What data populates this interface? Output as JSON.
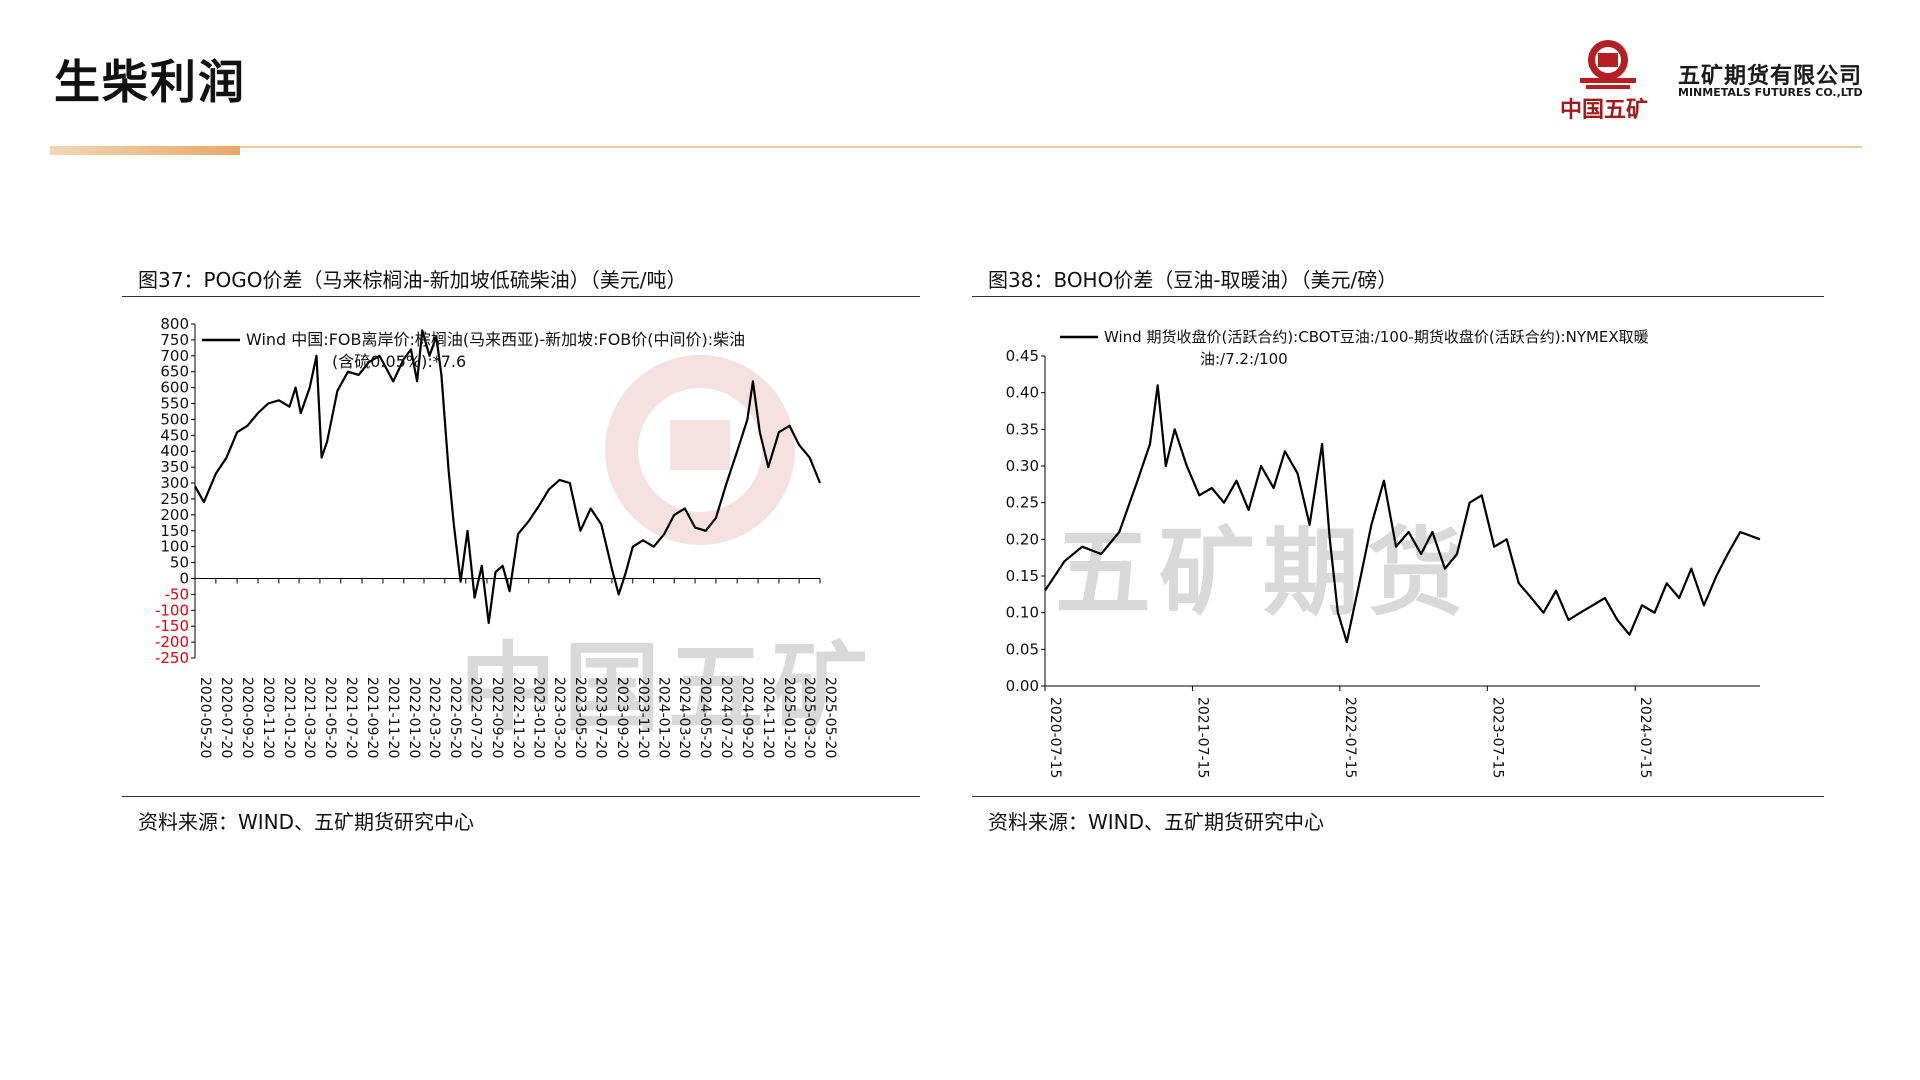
{
  "slide": {
    "title": "生柴利润"
  },
  "logo": {
    "seal_text": "MINMETALS",
    "cn_short": "中国五矿",
    "company_cn": "五矿期货有限公司",
    "company_en": "MINMETALS FUTURES CO.,LTD"
  },
  "watermark": {
    "text_left": "中国五矿",
    "text_right": "五矿期货"
  },
  "charts": [
    {
      "figure_title": "图37：POGO价差（马来棕榈油-新加坡低硫柴油）（美元/吨）",
      "source": "资料来源：WIND、五矿期货研究中心",
      "colors": {
        "line": "#000000",
        "negative_tick": "#e8000b",
        "axis": "#000000"
      },
      "chart_data": {
        "type": "line",
        "legend": [
          "Wind 中国:FOB离岸价:棕榈油(马来西亚)-新加坡:FOB价(中间价):柴油",
          "(含硫0.05%):*7.6"
        ],
        "series": [
          {
            "name": "Wind 中国:FOB离岸价:棕榈油(马来西亚)-新加坡:FOB价(中间价):柴油(含硫0.05%):*7.6"
          }
        ],
        "xlim": [
          "2020-05-20",
          "2025-05-20"
        ],
        "x_ticks": [
          "2020-05-20",
          "2020-07-20",
          "2020-09-20",
          "2020-11-20",
          "2021-01-20",
          "2021-03-20",
          "2021-05-20",
          "2021-07-20",
          "2021-09-20",
          "2021-11-20",
          "2022-01-20",
          "2022-03-20",
          "2022-05-20",
          "2022-07-20",
          "2022-09-20",
          "2022-11-20",
          "2023-01-20",
          "2023-03-20",
          "2023-05-20",
          "2023-07-20",
          "2023-09-20",
          "2023-11-20",
          "2024-01-20",
          "2024-03-20",
          "2024-05-20",
          "2024-07-20",
          "2024-09-20",
          "2024-11-20",
          "2025-01-20",
          "2025-03-20",
          "2025-05-20"
        ],
        "ylim": [
          -250,
          800
        ],
        "y_ticks": [
          "800",
          "750",
          "700",
          "650",
          "600",
          "550",
          "500",
          "450",
          "400",
          "350",
          "300",
          "250",
          "200",
          "150",
          "100",
          "50",
          "0",
          "-50",
          "-100",
          "-150",
          "-200",
          "-250"
        ],
        "x": [
          "2020-05-20",
          "2020-06-15",
          "2020-07-20",
          "2020-08-20",
          "2020-09-20",
          "2020-10-20",
          "2020-11-20",
          "2020-12-20",
          "2021-01-20",
          "2021-02-20",
          "2021-03-10",
          "2021-03-25",
          "2021-04-20",
          "2021-05-10",
          "2021-05-25",
          "2021-06-10",
          "2021-07-10",
          "2021-08-10",
          "2021-09-10",
          "2021-10-10",
          "2021-11-10",
          "2021-12-20",
          "2022-01-20",
          "2022-02-10",
          "2022-02-28",
          "2022-03-15",
          "2022-04-05",
          "2022-04-25",
          "2022-05-10",
          "2022-05-31",
          "2022-06-15",
          "2022-07-05",
          "2022-07-25",
          "2022-08-15",
          "2022-09-05",
          "2022-09-25",
          "2022-10-15",
          "2022-11-05",
          "2022-11-25",
          "2022-12-20",
          "2023-01-20",
          "2023-02-20",
          "2023-03-20",
          "2023-04-20",
          "2023-05-20",
          "2023-06-20",
          "2023-07-20",
          "2023-08-20",
          "2023-09-20",
          "2023-10-10",
          "2023-10-31",
          "2023-11-20",
          "2023-12-20",
          "2024-01-20",
          "2024-02-20",
          "2024-03-20",
          "2024-04-20",
          "2024-05-20",
          "2024-06-20",
          "2024-07-20",
          "2024-08-20",
          "2024-09-20",
          "2024-10-20",
          "2024-11-05",
          "2024-11-25",
          "2024-12-20",
          "2025-01-20",
          "2025-02-20",
          "2025-03-20",
          "2025-04-20",
          "2025-05-20"
        ],
        "values": [
          290,
          240,
          330,
          380,
          460,
          480,
          520,
          550,
          560,
          540,
          600,
          520,
          600,
          700,
          380,
          430,
          590,
          650,
          640,
          680,
          700,
          620,
          690,
          720,
          620,
          780,
          700,
          760,
          640,
          340,
          170,
          -10,
          150,
          -60,
          40,
          -140,
          20,
          40,
          -40,
          140,
          180,
          230,
          280,
          310,
          300,
          150,
          220,
          170,
          30,
          -50,
          20,
          100,
          120,
          100,
          140,
          200,
          220,
          160,
          150,
          190,
          300,
          400,
          500,
          620,
          460,
          350,
          460,
          480,
          420,
          380,
          300
        ]
      }
    },
    {
      "figure_title": "图38：BOHO价差（豆油-取暖油）（美元/磅）",
      "source": "资料来源：WIND、五矿期货研究中心",
      "colors": {
        "line": "#000000",
        "axis": "#000000"
      },
      "chart_data": {
        "type": "line",
        "legend": [
          "Wind 期货收盘价(活跃合约):CBOT豆油:/100-期货收盘价(活跃合约):NYMEX取暖",
          "油:/7.2:/100"
        ],
        "series": [
          {
            "name": "Wind 期货收盘价(活跃合约):CBOT豆油:/100-期货收盘价(活跃合约):NYMEX取暖油:/7.2:/100"
          }
        ],
        "xlim": [
          "2020-07-15",
          "2025-05-20"
        ],
        "x_ticks": [
          "2020-07-15",
          "2021-07-15",
          "2022-07-15",
          "2023-07-15",
          "2024-07-15"
        ],
        "x_tick_labels": [
          "2020-07-15",
          "2021-07-15",
          "2022-07-15",
          "2023-07-15",
          "2024-07-15"
        ],
        "ylim": [
          0,
          0.45
        ],
        "y_ticks": [
          "0.45",
          "0.40",
          "0.35",
          "0.30",
          "0.25",
          "0.20",
          "0.15",
          "0.10",
          "0.05",
          "0.00"
        ],
        "x": [
          "2020-07-15",
          "2020-09-01",
          "2020-10-15",
          "2020-12-01",
          "2021-01-15",
          "2021-03-01",
          "2021-04-01",
          "2021-04-20",
          "2021-05-10",
          "2021-06-01",
          "2021-07-01",
          "2021-08-01",
          "2021-09-01",
          "2021-10-01",
          "2021-11-01",
          "2021-12-01",
          "2022-01-01",
          "2022-02-01",
          "2022-03-01",
          "2022-04-01",
          "2022-05-01",
          "2022-06-01",
          "2022-06-20",
          "2022-07-10",
          "2022-08-01",
          "2022-09-01",
          "2022-10-01",
          "2022-11-01",
          "2022-12-01",
          "2023-01-01",
          "2023-02-01",
          "2023-03-01",
          "2023-04-01",
          "2023-05-01",
          "2023-06-01",
          "2023-07-01",
          "2023-08-01",
          "2023-09-01",
          "2023-10-01",
          "2023-11-01",
          "2023-12-01",
          "2024-01-01",
          "2024-02-01",
          "2024-03-01",
          "2024-04-01",
          "2024-05-01",
          "2024-06-01",
          "2024-07-01",
          "2024-08-01",
          "2024-09-01",
          "2024-10-01",
          "2024-11-01",
          "2024-12-01",
          "2025-01-01",
          "2025-02-01",
          "2025-03-01",
          "2025-04-01",
          "2025-05-20"
        ],
        "values": [
          0.13,
          0.17,
          0.19,
          0.18,
          0.21,
          0.28,
          0.33,
          0.41,
          0.3,
          0.35,
          0.3,
          0.26,
          0.27,
          0.25,
          0.28,
          0.24,
          0.3,
          0.27,
          0.32,
          0.29,
          0.22,
          0.33,
          0.2,
          0.1,
          0.06,
          0.14,
          0.22,
          0.28,
          0.19,
          0.21,
          0.18,
          0.21,
          0.16,
          0.18,
          0.25,
          0.26,
          0.19,
          0.2,
          0.14,
          0.12,
          0.1,
          0.13,
          0.09,
          0.1,
          0.11,
          0.12,
          0.09,
          0.07,
          0.11,
          0.1,
          0.14,
          0.12,
          0.16,
          0.11,
          0.15,
          0.18,
          0.21,
          0.2
        ]
      }
    }
  ]
}
